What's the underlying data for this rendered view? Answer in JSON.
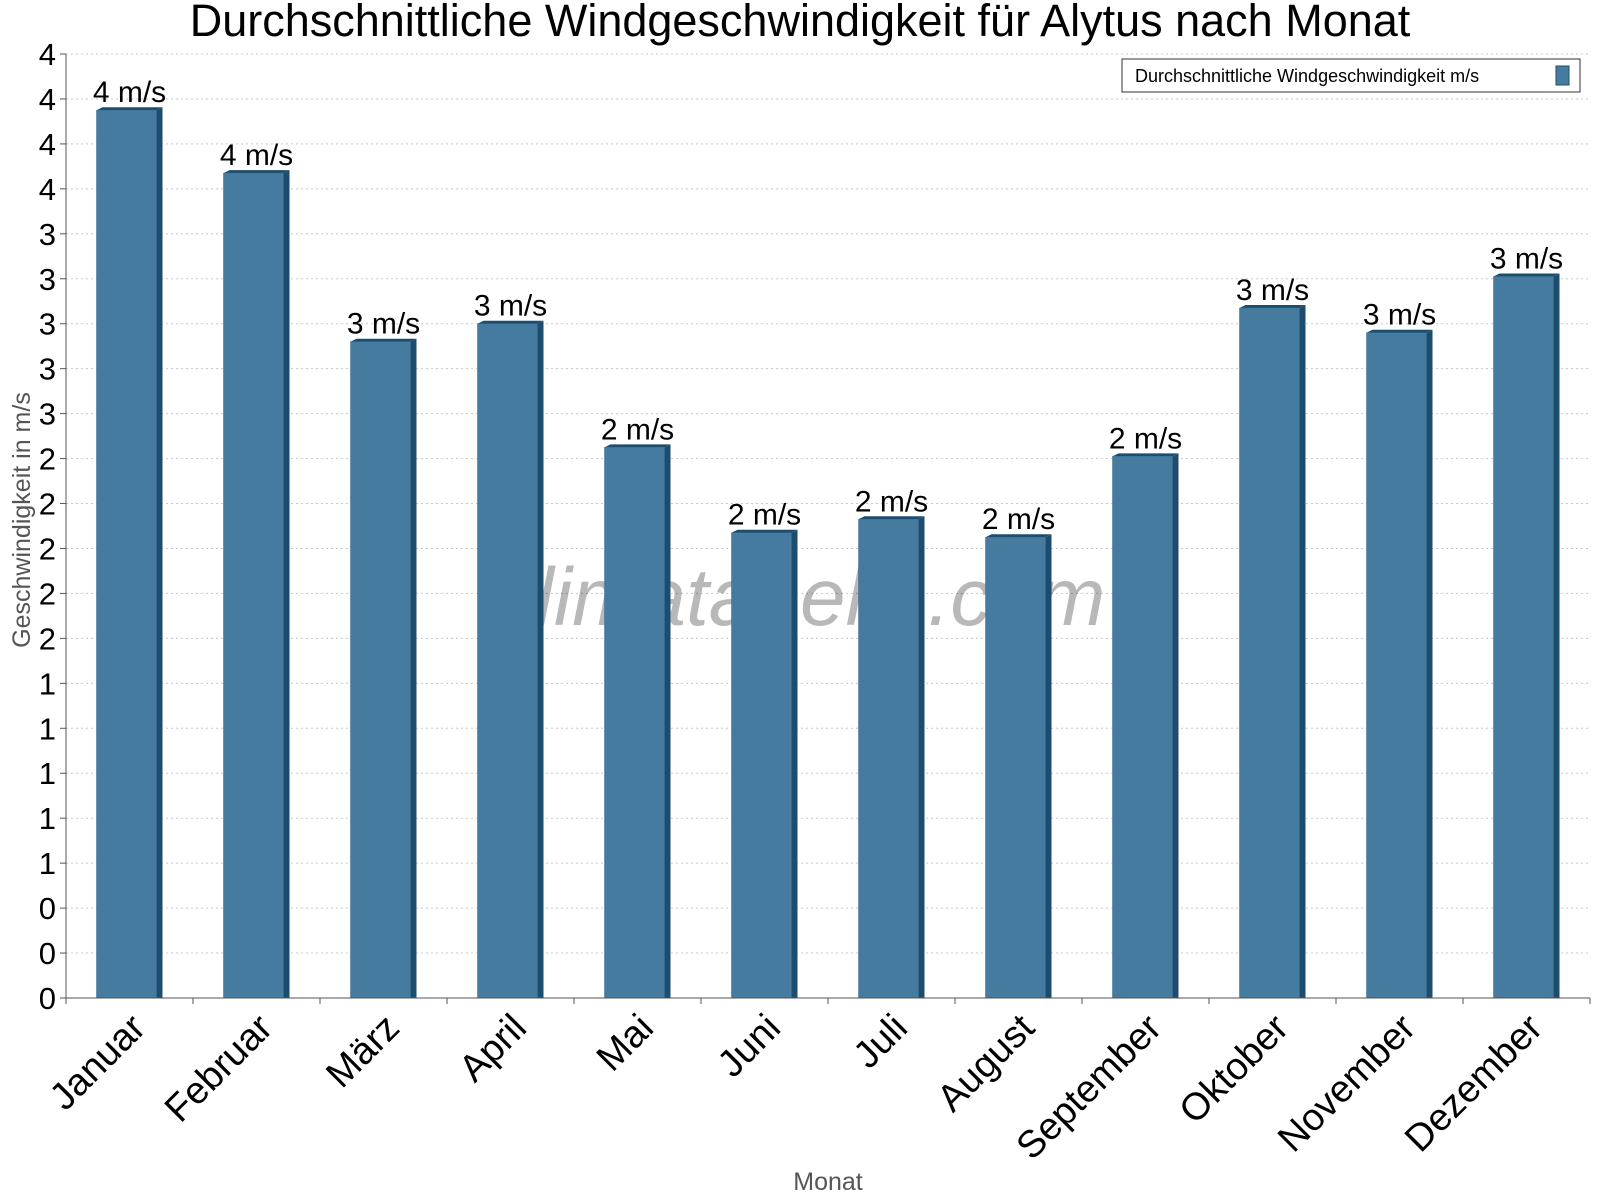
{
  "chart_data": {
    "type": "bar",
    "title": "Durchschnittliche Windgeschwindigkeit für Alytus nach Monat",
    "xlabel": "Monat",
    "ylabel": "Geschwindigkeit in m/s",
    "ylim": [
      0,
      4.2
    ],
    "y_tick_step": 0.2,
    "y_tick_labels": [
      "0",
      "0",
      "0",
      "1",
      "1",
      "1",
      "1",
      "1",
      "2",
      "2",
      "2",
      "2",
      "2",
      "3",
      "3",
      "3",
      "3",
      "3",
      "4",
      "4",
      "4",
      "4"
    ],
    "grid": true,
    "categories": [
      "Januar",
      "Februar",
      "März",
      "April",
      "Mai",
      "Juni",
      "Juli",
      "August",
      "September",
      "Oktober",
      "November",
      "Dezember"
    ],
    "series": [
      {
        "name": "Durchschnittliche Windgeschwindigkeit m/s",
        "color": "#467ba0",
        "values": [
          3.95,
          3.67,
          2.92,
          3.0,
          2.45,
          2.07,
          2.13,
          2.05,
          2.41,
          3.07,
          2.96,
          3.21
        ],
        "data_labels": [
          "4 m/s",
          "4 m/s",
          "3 m/s",
          "3 m/s",
          "2 m/s",
          "2 m/s",
          "2 m/s",
          "2 m/s",
          "2 m/s",
          "3 m/s",
          "3 m/s",
          "3 m/s"
        ]
      }
    ],
    "legend": {
      "position": "top-right",
      "label": "Durchschnittliche Windgeschwindigkeit m/s"
    },
    "watermark": "klimatabelle.com"
  },
  "colors": {
    "bar": "#467ba0",
    "bar_dark": "#1d4d6e",
    "grid": "#c8c8c8",
    "axis": "#555555"
  }
}
